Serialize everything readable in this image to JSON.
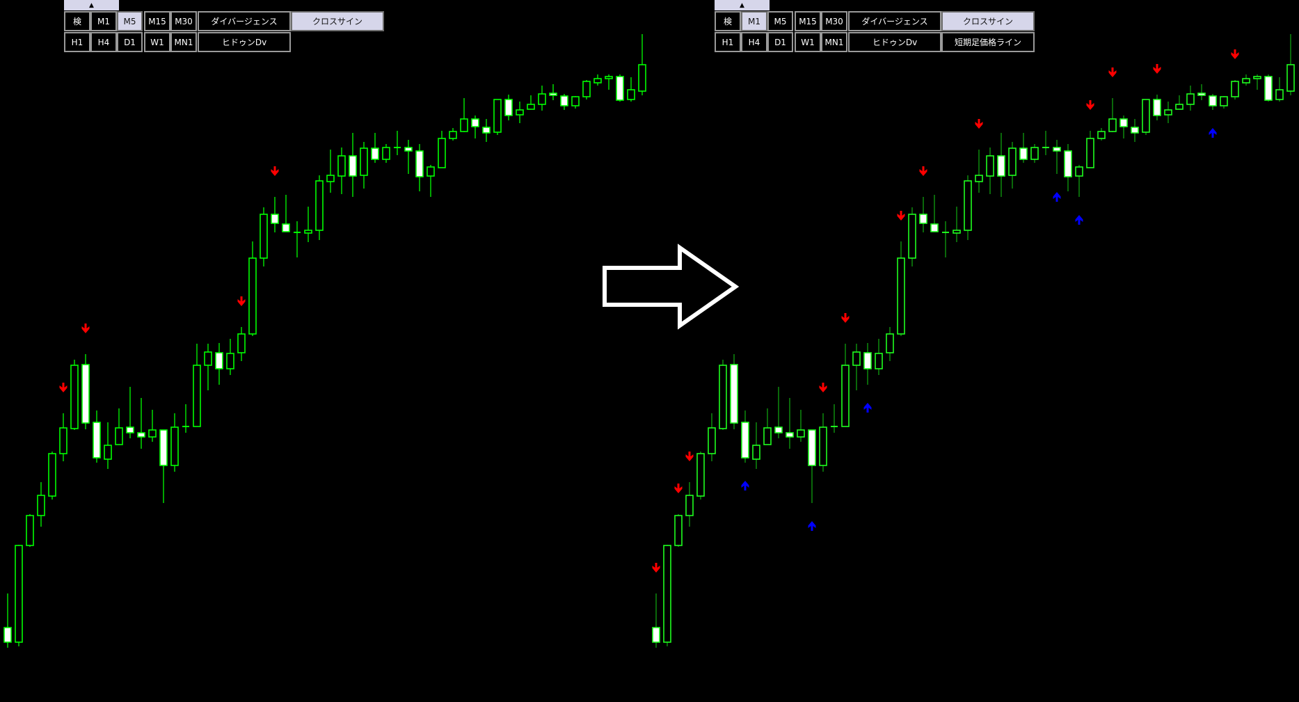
{
  "colors": {
    "background": "#000000",
    "candle_outline_left": "#00ff00",
    "candle_outline_right": "#1eff1e",
    "candle_wick_right": "#10a010",
    "bearish_body": "#ffffff",
    "sell_arrow": "#ff0000",
    "buy_arrow": "#0000ff",
    "button_active": "#d6d6ea",
    "transition_arrow": "#ffffff"
  },
  "toolbar_left": {
    "collapse_icon": "▲",
    "row1": [
      {
        "label": "検",
        "active": false
      },
      {
        "label": "M1",
        "active": false
      },
      {
        "label": "M5",
        "active": true
      },
      {
        "label": "M15",
        "active": false
      },
      {
        "label": "M30",
        "active": false
      },
      {
        "label": "ダイバージェンス",
        "active": false
      },
      {
        "label": "クロスサイン",
        "active": true
      }
    ],
    "row2": [
      {
        "label": "H1",
        "active": false
      },
      {
        "label": "H4",
        "active": false
      },
      {
        "label": "D1",
        "active": false
      },
      {
        "label": "W1",
        "active": false
      },
      {
        "label": "MN1",
        "active": false
      },
      {
        "label": "ヒドゥンDv",
        "active": false
      }
    ]
  },
  "toolbar_right": {
    "collapse_icon": "▲",
    "row1": [
      {
        "label": "検",
        "active": false
      },
      {
        "label": "M1",
        "active": true
      },
      {
        "label": "M5",
        "active": false
      },
      {
        "label": "M15",
        "active": false
      },
      {
        "label": "M30",
        "active": false
      },
      {
        "label": "ダイバージェンス",
        "active": false
      },
      {
        "label": "クロスサイン",
        "active": true
      }
    ],
    "row2": [
      {
        "label": "H1",
        "active": false
      },
      {
        "label": "H4",
        "active": false
      },
      {
        "label": "D1",
        "active": false
      },
      {
        "label": "W1",
        "active": false
      },
      {
        "label": "MN1",
        "active": false
      },
      {
        "label": "ヒドゥンDv",
        "active": false
      },
      {
        "label": "短期足価格ライン",
        "active": false
      }
    ]
  },
  "chart_data": {
    "type": "candlestick",
    "price_units": "relative (no axis printed)",
    "candles_ohlc": [
      [
        98,
        147,
        69,
        77
      ],
      [
        77,
        217,
        71,
        216
      ],
      [
        216,
        261,
        214,
        259
      ],
      [
        259,
        307,
        243,
        288
      ],
      [
        287,
        351,
        282,
        348
      ],
      [
        348,
        406,
        337,
        385
      ],
      [
        384,
        483,
        382,
        475
      ],
      [
        476,
        491,
        383,
        392
      ],
      [
        393,
        410,
        335,
        342
      ],
      [
        340,
        393,
        326,
        360
      ],
      [
        361,
        413,
        361,
        385
      ],
      [
        386,
        444,
        370,
        378
      ],
      [
        378,
        428,
        355,
        372
      ],
      [
        372,
        411,
        365,
        382
      ],
      [
        382,
        382,
        277,
        331
      ],
      [
        331,
        406,
        322,
        386
      ],
      [
        387,
        419,
        378,
        387
      ],
      [
        387,
        506,
        387,
        475
      ],
      [
        475,
        506,
        439,
        494
      ],
      [
        493,
        507,
        447,
        470
      ],
      [
        470,
        513,
        461,
        492
      ],
      [
        493,
        530,
        481,
        520
      ],
      [
        520,
        653,
        517,
        629
      ],
      [
        629,
        702,
        617,
        692
      ],
      [
        692,
        717,
        666,
        679
      ],
      [
        678,
        720,
        667,
        667
      ],
      [
        666,
        682,
        630,
        666
      ],
      [
        665,
        703,
        652,
        669
      ],
      [
        669,
        748,
        655,
        740
      ],
      [
        739,
        785,
        723,
        748
      ],
      [
        747,
        788,
        721,
        776
      ],
      [
        776,
        809,
        717,
        747
      ],
      [
        748,
        796,
        729,
        787
      ],
      [
        787,
        809,
        766,
        771
      ],
      [
        771,
        793,
        766,
        788
      ],
      [
        788,
        812,
        777,
        788
      ],
      [
        788,
        799,
        750,
        783
      ],
      [
        783,
        793,
        725,
        746
      ],
      [
        747,
        763,
        717,
        760
      ],
      [
        759,
        812,
        759,
        801
      ],
      [
        801,
        816,
        798,
        811
      ],
      [
        811,
        859,
        810,
        829
      ],
      [
        829,
        834,
        801,
        818
      ],
      [
        817,
        829,
        796,
        809
      ],
      [
        810,
        857,
        806,
        857
      ],
      [
        857,
        864,
        827,
        834
      ],
      [
        835,
        854,
        823,
        842
      ],
      [
        843,
        863,
        843,
        850
      ],
      [
        850,
        877,
        841,
        865
      ],
      [
        866,
        879,
        856,
        863
      ],
      [
        862,
        865,
        842,
        848
      ],
      [
        848,
        862,
        844,
        861
      ],
      [
        861,
        885,
        857,
        883
      ],
      [
        881,
        893,
        877,
        887
      ],
      [
        887,
        893,
        871,
        890
      ],
      [
        890,
        893,
        854,
        856
      ],
      [
        857,
        889,
        854,
        871
      ],
      [
        869,
        951,
        863,
        907
      ]
    ],
    "left_panel_signals": [
      {
        "candle": 5,
        "type": "sell"
      },
      {
        "candle": 7,
        "type": "sell"
      },
      {
        "candle": 21,
        "type": "sell"
      },
      {
        "candle": 24,
        "type": "sell"
      }
    ],
    "right_panel_signals": [
      {
        "candle": 0,
        "type": "sell"
      },
      {
        "candle": 2,
        "type": "sell"
      },
      {
        "candle": 3,
        "type": "sell"
      },
      {
        "candle": 8,
        "type": "buy"
      },
      {
        "candle": 14,
        "type": "buy"
      },
      {
        "candle": 15,
        "type": "sell"
      },
      {
        "candle": 17,
        "type": "sell"
      },
      {
        "candle": 19,
        "type": "buy"
      },
      {
        "candle": 22,
        "type": "sell"
      },
      {
        "candle": 24,
        "type": "sell"
      },
      {
        "candle": 29,
        "type": "sell"
      },
      {
        "candle": 36,
        "type": "buy"
      },
      {
        "candle": 38,
        "type": "buy"
      },
      {
        "candle": 39,
        "type": "sell"
      },
      {
        "candle": 41,
        "type": "sell"
      },
      {
        "candle": 45,
        "type": "sell"
      },
      {
        "candle": 50,
        "type": "buy"
      },
      {
        "candle": 52,
        "type": "sell"
      }
    ]
  }
}
